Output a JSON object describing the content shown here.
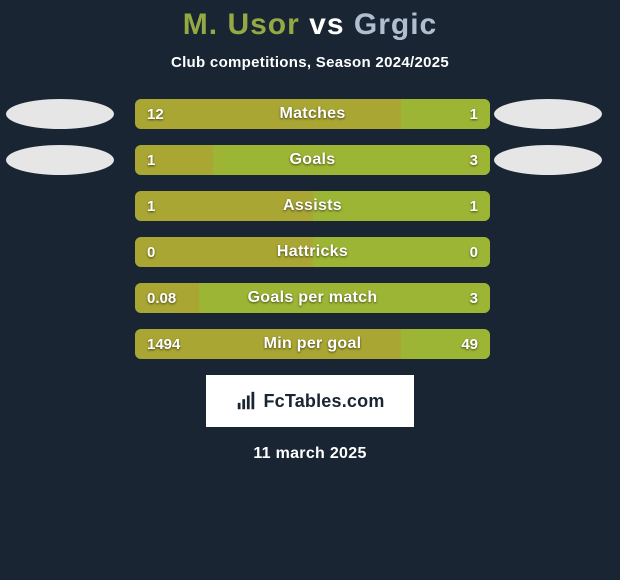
{
  "colors": {
    "background": "#1a2533",
    "player1_title": "#94a943",
    "player2_title": "#b0bfcf",
    "bar_left": "#a9a633",
    "bar_right": "#9db534",
    "track": "#525a56",
    "avatar": "#e6e6e6",
    "logo_bg": "#ffffff",
    "logo_fg": "#1a2533"
  },
  "title": {
    "player1": "M. Usor",
    "vs": "vs",
    "player2": "Grgic"
  },
  "subtitle": "Club competitions, Season 2024/2025",
  "stats": [
    {
      "label": "Matches",
      "left_value": "12",
      "right_value": "1",
      "left_pct": 75,
      "right_pct": 25,
      "show_avatars": true
    },
    {
      "label": "Goals",
      "left_value": "1",
      "right_value": "3",
      "left_pct": 22,
      "right_pct": 78,
      "show_avatars": true
    },
    {
      "label": "Assists",
      "left_value": "1",
      "right_value": "1",
      "left_pct": 50,
      "right_pct": 50,
      "show_avatars": false
    },
    {
      "label": "Hattricks",
      "left_value": "0",
      "right_value": "0",
      "left_pct": 50,
      "right_pct": 50,
      "show_avatars": false
    },
    {
      "label": "Goals per match",
      "left_value": "0.08",
      "right_value": "3",
      "left_pct": 18,
      "right_pct": 82,
      "show_avatars": false
    },
    {
      "label": "Min per goal",
      "left_value": "1494",
      "right_value": "49",
      "left_pct": 75,
      "right_pct": 25,
      "show_avatars": false
    }
  ],
  "footer": {
    "logo_text": "FcTables.com",
    "date": "11 march 2025"
  }
}
